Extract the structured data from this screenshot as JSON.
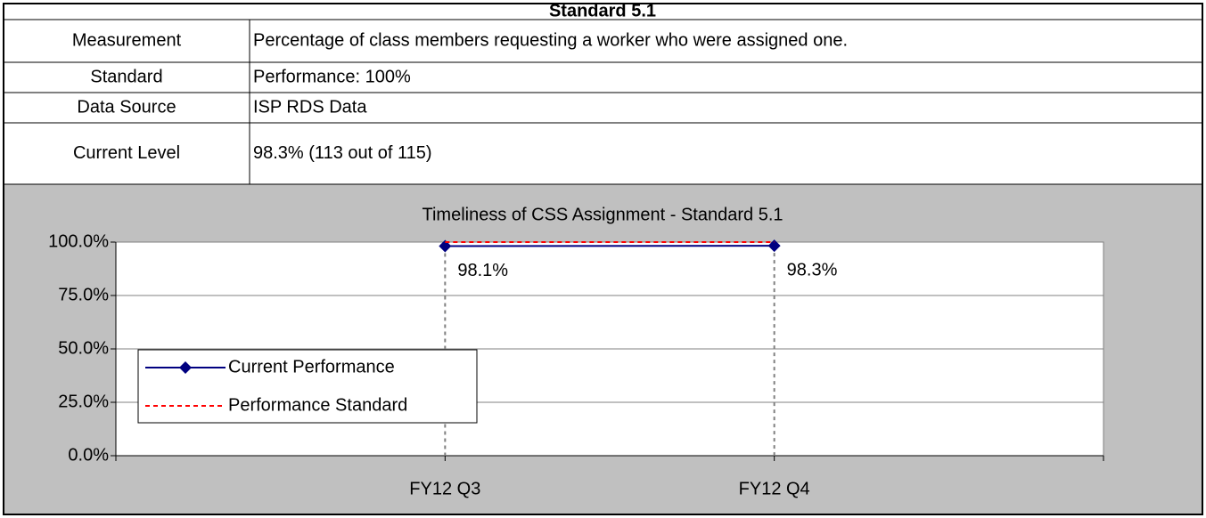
{
  "table": {
    "title": "Standard 5.1",
    "rows": [
      [
        "Measurement",
        "Percentage of class members requesting a worker who were assigned one."
      ],
      [
        "Standard",
        "Performance: 100%"
      ],
      [
        "Data Source",
        "ISP RDS Data"
      ],
      [
        "Current Level",
        "98.3% (113 out of 115)"
      ]
    ]
  },
  "chart_data": {
    "type": "line",
    "title": "Timeliness of CSS Assignment - Standard 5.1",
    "categories": [
      null,
      "FY12 Q3",
      "FY12 Q4",
      null
    ],
    "series": [
      {
        "name": "Current Performance",
        "color": "#000080",
        "values": [
          null,
          98.1,
          98.3,
          null
        ],
        "value_labels": [
          null,
          "98.1%",
          "98.3%",
          null
        ]
      },
      {
        "name": "Performance Standard",
        "color": "#ff0000",
        "values": [
          null,
          100,
          100,
          null
        ]
      }
    ],
    "ylim": [
      0,
      100
    ],
    "yticks": [
      {
        "value": 0,
        "label": "0.0%"
      },
      {
        "value": 25,
        "label": "25.0%"
      },
      {
        "value": 50,
        "label": "50.0%"
      },
      {
        "value": 75,
        "label": "75.0%"
      },
      {
        "value": 100,
        "label": "100.0%"
      }
    ],
    "grid": true,
    "legend": "lower left"
  }
}
